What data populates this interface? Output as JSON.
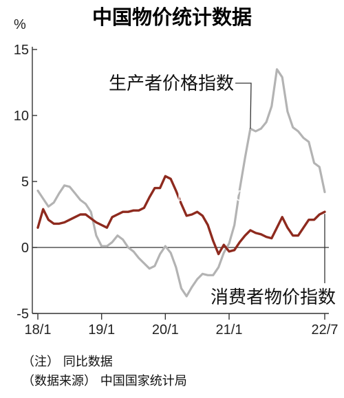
{
  "chart_data": {
    "type": "line",
    "title": "中国物价统计数据",
    "unit": "%",
    "ylim": [
      -5,
      15
    ],
    "yticks": [
      -5,
      0,
      5,
      10,
      15
    ],
    "xticks": [
      "18/1",
      "19/1",
      "20/1",
      "21/1",
      "22/7"
    ],
    "x": [
      "2018-01",
      "2018-02",
      "2018-03",
      "2018-04",
      "2018-05",
      "2018-06",
      "2018-07",
      "2018-08",
      "2018-09",
      "2018-10",
      "2018-11",
      "2018-12",
      "2019-01",
      "2019-02",
      "2019-03",
      "2019-04",
      "2019-05",
      "2019-06",
      "2019-07",
      "2019-08",
      "2019-09",
      "2019-10",
      "2019-11",
      "2019-12",
      "2020-01",
      "2020-02",
      "2020-03",
      "2020-04",
      "2020-05",
      "2020-06",
      "2020-07",
      "2020-08",
      "2020-09",
      "2020-10",
      "2020-11",
      "2020-12",
      "2021-01",
      "2021-02",
      "2021-03",
      "2021-04",
      "2021-05",
      "2021-06",
      "2021-07",
      "2021-08",
      "2021-09",
      "2021-10",
      "2021-11",
      "2021-12",
      "2022-01",
      "2022-02",
      "2022-03",
      "2022-04",
      "2022-05",
      "2022-06",
      "2022-07"
    ],
    "grid": false,
    "series": [
      {
        "name": "生产者价格指数",
        "color": "#b3b3b3",
        "values": [
          4.3,
          3.7,
          3.1,
          3.4,
          4.1,
          4.7,
          4.6,
          4.1,
          3.6,
          3.3,
          2.7,
          0.9,
          0.1,
          0.1,
          0.4,
          0.9,
          0.6,
          0.0,
          -0.3,
          -0.8,
          -1.2,
          -1.6,
          -1.4,
          -0.5,
          0.1,
          -0.4,
          -1.5,
          -3.1,
          -3.7,
          -3.0,
          -2.4,
          -2.0,
          -2.1,
          -2.1,
          -1.5,
          -0.4,
          0.3,
          1.7,
          4.4,
          6.8,
          9.0,
          8.8,
          9.0,
          9.5,
          10.7,
          13.5,
          12.9,
          10.3,
          9.1,
          8.8,
          8.3,
          8.0,
          6.4,
          6.1,
          4.2
        ]
      },
      {
        "name": "消费者物价指数",
        "color": "#8e2a1e",
        "values": [
          1.5,
          2.9,
          2.1,
          1.8,
          1.8,
          1.9,
          2.1,
          2.3,
          2.5,
          2.5,
          2.2,
          1.9,
          1.7,
          1.5,
          2.3,
          2.5,
          2.7,
          2.7,
          2.8,
          2.8,
          3.0,
          3.8,
          4.5,
          4.5,
          5.4,
          5.2,
          4.3,
          3.3,
          2.4,
          2.5,
          2.7,
          2.4,
          1.7,
          0.5,
          -0.5,
          0.2,
          -0.3,
          -0.2,
          0.4,
          0.9,
          1.3,
          1.1,
          1.0,
          0.8,
          0.7,
          1.5,
          2.3,
          1.5,
          0.9,
          0.9,
          1.5,
          2.1,
          2.1,
          2.5,
          2.7
        ]
      }
    ],
    "watermark": "日经中文网"
  },
  "notes": {
    "note1": "（注）  同比数据",
    "note2": "（数据来源）  中国国家统计局"
  }
}
